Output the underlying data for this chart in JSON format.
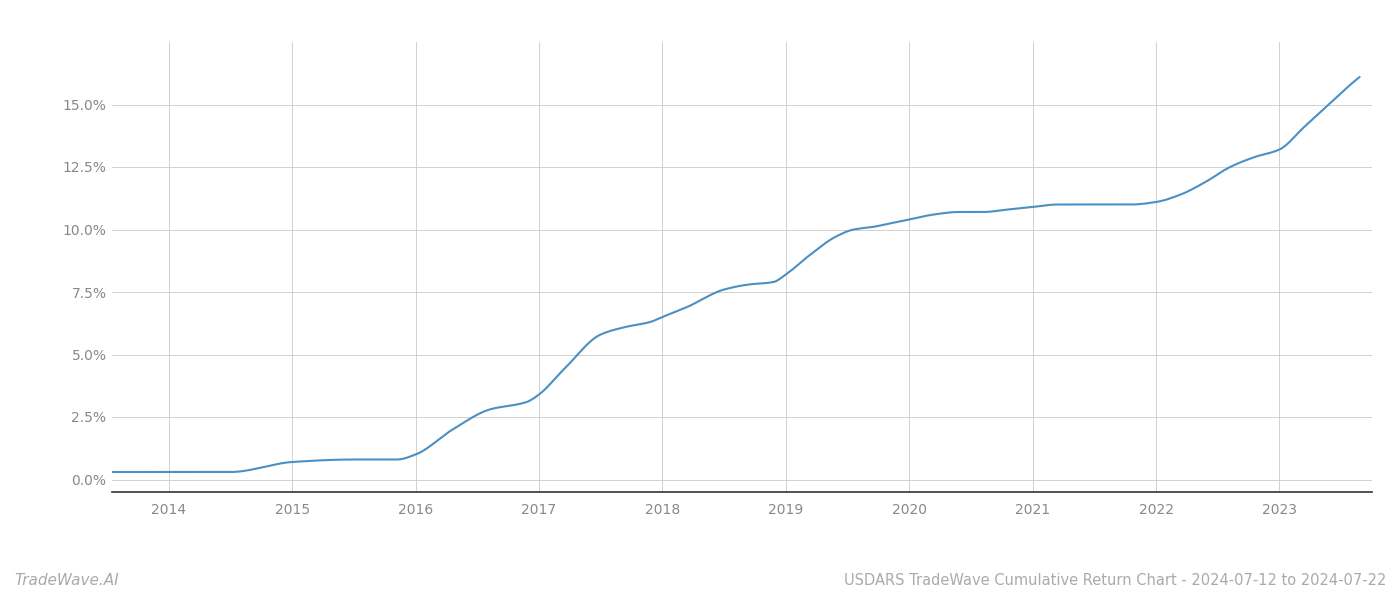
{
  "title": "USDARS TradeWave Cumulative Return Chart - 2024-07-12 to 2024-07-22",
  "watermark": "TradeWave.AI",
  "line_color": "#4a90c4",
  "background_color": "#ffffff",
  "grid_color": "#cccccc",
  "x_years": [
    2014,
    2015,
    2016,
    2017,
    2018,
    2019,
    2020,
    2021,
    2022,
    2023
  ],
  "key_x": [
    2013.54,
    2014.0,
    2014.5,
    2015.0,
    2015.5,
    2015.85,
    2016.0,
    2016.3,
    2016.6,
    2016.9,
    2017.0,
    2017.2,
    2017.5,
    2017.7,
    2017.9,
    2018.0,
    2018.2,
    2018.5,
    2018.7,
    2018.9,
    2019.0,
    2019.2,
    2019.4,
    2019.55,
    2019.7,
    2019.9,
    2020.0,
    2020.2,
    2020.4,
    2020.6,
    2020.8,
    2021.0,
    2021.2,
    2021.4,
    2021.6,
    2021.8,
    2022.0,
    2022.2,
    2022.4,
    2022.6,
    2022.8,
    2023.0,
    2023.2,
    2023.4,
    2023.6,
    2023.65
  ],
  "key_y": [
    0.003,
    0.003,
    0.003,
    0.007,
    0.008,
    0.008,
    0.01,
    0.02,
    0.028,
    0.031,
    0.034,
    0.044,
    0.058,
    0.061,
    0.063,
    0.065,
    0.069,
    0.076,
    0.078,
    0.079,
    0.082,
    0.09,
    0.097,
    0.1,
    0.101,
    0.103,
    0.104,
    0.106,
    0.107,
    0.107,
    0.108,
    0.109,
    0.11,
    0.11,
    0.11,
    0.11,
    0.111,
    0.114,
    0.119,
    0.125,
    0.129,
    0.132,
    0.141,
    0.15,
    0.159,
    0.161
  ],
  "ylim": [
    -0.005,
    0.175
  ],
  "xlim": [
    2013.54,
    2023.75
  ],
  "yticks": [
    0.0,
    0.025,
    0.05,
    0.075,
    0.1,
    0.125,
    0.15
  ],
  "ytick_labels": [
    "0.0%",
    "2.5%",
    "5.0%",
    "7.5%",
    "10.0%",
    "12.5%",
    "15.0%"
  ],
  "line_width": 1.5,
  "title_fontsize": 10.5,
  "tick_fontsize": 10,
  "watermark_fontsize": 11
}
